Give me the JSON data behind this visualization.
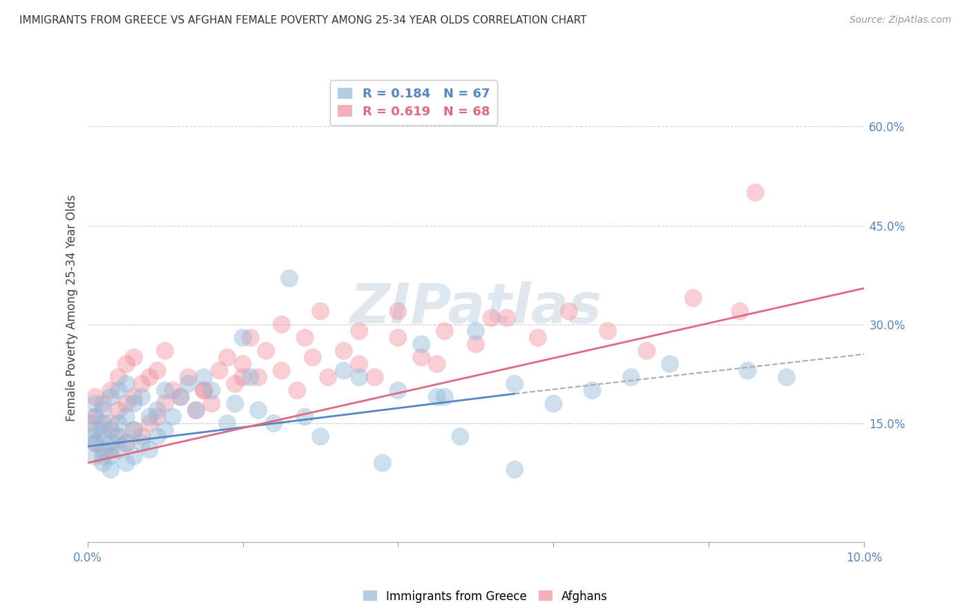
{
  "title": "IMMIGRANTS FROM GREECE VS AFGHAN FEMALE POVERTY AMONG 25-34 YEAR OLDS CORRELATION CHART",
  "source": "Source: ZipAtlas.com",
  "ylabel": "Female Poverty Among 25-34 Year Olds",
  "right_yticks": [
    0.15,
    0.3,
    0.45,
    0.6
  ],
  "right_yticklabels": [
    "15.0%",
    "30.0%",
    "45.0%",
    "60.0%"
  ],
  "legend_label_greece": "Immigrants from Greece",
  "legend_label_afghans": "Afghans",
  "blue_color": "#90b8d8",
  "pink_color": "#f090a0",
  "watermark": "ZIPatlas",
  "xlim": [
    0.0,
    0.1
  ],
  "ylim": [
    -0.03,
    0.68
  ],
  "greece_x": [
    0.0005,
    0.001,
    0.001,
    0.001,
    0.001,
    0.001,
    0.002,
    0.002,
    0.002,
    0.002,
    0.002,
    0.003,
    0.003,
    0.003,
    0.003,
    0.003,
    0.004,
    0.004,
    0.004,
    0.004,
    0.005,
    0.005,
    0.005,
    0.005,
    0.006,
    0.006,
    0.006,
    0.007,
    0.007,
    0.008,
    0.008,
    0.009,
    0.009,
    0.01,
    0.01,
    0.011,
    0.012,
    0.013,
    0.014,
    0.015,
    0.016,
    0.018,
    0.019,
    0.02,
    0.021,
    0.022,
    0.024,
    0.026,
    0.028,
    0.03,
    0.033,
    0.035,
    0.038,
    0.04,
    0.043,
    0.046,
    0.05,
    0.055,
    0.06,
    0.065,
    0.07,
    0.075,
    0.085,
    0.09,
    0.055,
    0.045,
    0.048
  ],
  "greece_y": [
    0.13,
    0.1,
    0.12,
    0.14,
    0.16,
    0.18,
    0.09,
    0.11,
    0.13,
    0.15,
    0.17,
    0.08,
    0.1,
    0.12,
    0.14,
    0.19,
    0.11,
    0.13,
    0.15,
    0.2,
    0.09,
    0.12,
    0.16,
    0.21,
    0.1,
    0.14,
    0.18,
    0.12,
    0.19,
    0.11,
    0.16,
    0.13,
    0.17,
    0.14,
    0.2,
    0.16,
    0.19,
    0.21,
    0.17,
    0.22,
    0.2,
    0.15,
    0.18,
    0.28,
    0.22,
    0.17,
    0.15,
    0.37,
    0.16,
    0.13,
    0.23,
    0.22,
    0.09,
    0.2,
    0.27,
    0.19,
    0.29,
    0.21,
    0.18,
    0.2,
    0.22,
    0.24,
    0.23,
    0.22,
    0.08,
    0.19,
    0.13
  ],
  "afghan_x": [
    0.0005,
    0.001,
    0.001,
    0.001,
    0.002,
    0.002,
    0.002,
    0.003,
    0.003,
    0.003,
    0.004,
    0.004,
    0.004,
    0.005,
    0.005,
    0.005,
    0.006,
    0.006,
    0.006,
    0.007,
    0.007,
    0.008,
    0.008,
    0.009,
    0.009,
    0.01,
    0.01,
    0.011,
    0.012,
    0.013,
    0.014,
    0.015,
    0.016,
    0.017,
    0.018,
    0.019,
    0.02,
    0.021,
    0.022,
    0.023,
    0.025,
    0.027,
    0.029,
    0.031,
    0.033,
    0.035,
    0.037,
    0.04,
    0.043,
    0.046,
    0.05,
    0.054,
    0.058,
    0.062,
    0.067,
    0.072,
    0.078,
    0.084,
    0.086,
    0.03,
    0.025,
    0.02,
    0.015,
    0.035,
    0.028,
    0.04,
    0.045,
    0.052
  ],
  "afghan_y": [
    0.15,
    0.12,
    0.16,
    0.19,
    0.1,
    0.14,
    0.18,
    0.11,
    0.15,
    0.2,
    0.13,
    0.17,
    0.22,
    0.12,
    0.18,
    0.24,
    0.14,
    0.19,
    0.25,
    0.13,
    0.21,
    0.15,
    0.22,
    0.16,
    0.23,
    0.18,
    0.26,
    0.2,
    0.19,
    0.22,
    0.17,
    0.2,
    0.18,
    0.23,
    0.25,
    0.21,
    0.24,
    0.28,
    0.22,
    0.26,
    0.23,
    0.2,
    0.25,
    0.22,
    0.26,
    0.24,
    0.22,
    0.28,
    0.25,
    0.29,
    0.27,
    0.31,
    0.28,
    0.32,
    0.29,
    0.26,
    0.34,
    0.32,
    0.5,
    0.32,
    0.3,
    0.22,
    0.2,
    0.29,
    0.28,
    0.32,
    0.24,
    0.31
  ],
  "greece_trend_x": [
    0.0,
    0.055
  ],
  "greece_trend_y": [
    0.115,
    0.195
  ],
  "afghan_trend_x": [
    0.0,
    0.1
  ],
  "afghan_trend_y": [
    0.09,
    0.355
  ],
  "greece_trend_color": "#5585c5",
  "afghan_trend_color": "#e06880",
  "dashed_trend_x": [
    0.055,
    0.1
  ],
  "dashed_trend_y": [
    0.195,
    0.255
  ],
  "grid_color": "#cccccc",
  "background_color": "#ffffff",
  "legend1_r1": "R = 0.184",
  "legend1_n1": "N = 67",
  "legend1_r2": "R = 0.619",
  "legend1_n2": "N = 68"
}
